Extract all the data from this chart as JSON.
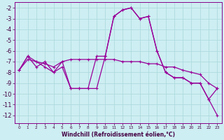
{
  "xlabel": "Windchill (Refroidissement éolien,°C)",
  "background_color": "#cdeef2",
  "grid_color": "#a8d8dc",
  "line_color": "#990099",
  "xlim": [
    -0.5,
    23.5
  ],
  "ylim": [
    -12.7,
    -1.5
  ],
  "yticks": [
    -2,
    -3,
    -4,
    -5,
    -6,
    -7,
    -8,
    -9,
    -10,
    -11,
    -12
  ],
  "xtick_labels": [
    "0",
    "1",
    "2",
    "3",
    "4",
    "5",
    "6",
    "7",
    "8",
    "9",
    "10",
    "11",
    "12",
    "13",
    "14",
    "15",
    "16",
    "17",
    "18",
    "19",
    "20",
    "21",
    "22",
    "23"
  ],
  "series_main": [
    null,
    null,
    null,
    null,
    null,
    null,
    null,
    null,
    null,
    null,
    -6.5,
    -2.8,
    -2.2,
    -2.0,
    -3.0,
    -2.8,
    -6.0,
    -8.0,
    -8.5,
    -8.5,
    -9.0,
    -9.0,
    -10.5,
    -12.0
  ],
  "series_trend": [
    -7.8,
    -6.8,
    -7.0,
    -7.2,
    -7.5,
    -7.0,
    -6.8,
    -6.8,
    -6.8,
    -6.8,
    -6.8,
    -6.8,
    -7.0,
    -7.0,
    -7.0,
    -7.2,
    -7.2,
    -7.5,
    -7.5,
    -7.8,
    -8.0,
    -8.2,
    -9.0,
    -9.5
  ],
  "series_zigzag": [
    -7.8,
    -6.5,
    -7.5,
    -7.0,
    -8.0,
    -7.5,
    -9.5,
    -9.5,
    -9.5,
    -6.5,
    -6.5,
    null,
    null,
    null,
    null,
    null,
    null,
    null,
    null,
    null,
    null,
    null,
    null,
    null
  ],
  "series_end": [
    null,
    null,
    null,
    null,
    null,
    null,
    null,
    null,
    null,
    null,
    -6.5,
    -2.8,
    -2.2,
    -2.0,
    -3.0,
    -2.8,
    -6.0,
    -8.0,
    -8.5,
    -8.5,
    -9.0,
    -9.0,
    -10.5,
    -9.5
  ],
  "series_flat": [
    -7.8,
    -6.5,
    -7.0,
    -7.5,
    -8.0,
    -7.0,
    -9.5,
    -9.5,
    -9.5,
    -9.5,
    -6.5,
    null,
    null,
    null,
    null,
    null,
    null,
    null,
    null,
    null,
    null,
    null,
    null,
    null
  ]
}
